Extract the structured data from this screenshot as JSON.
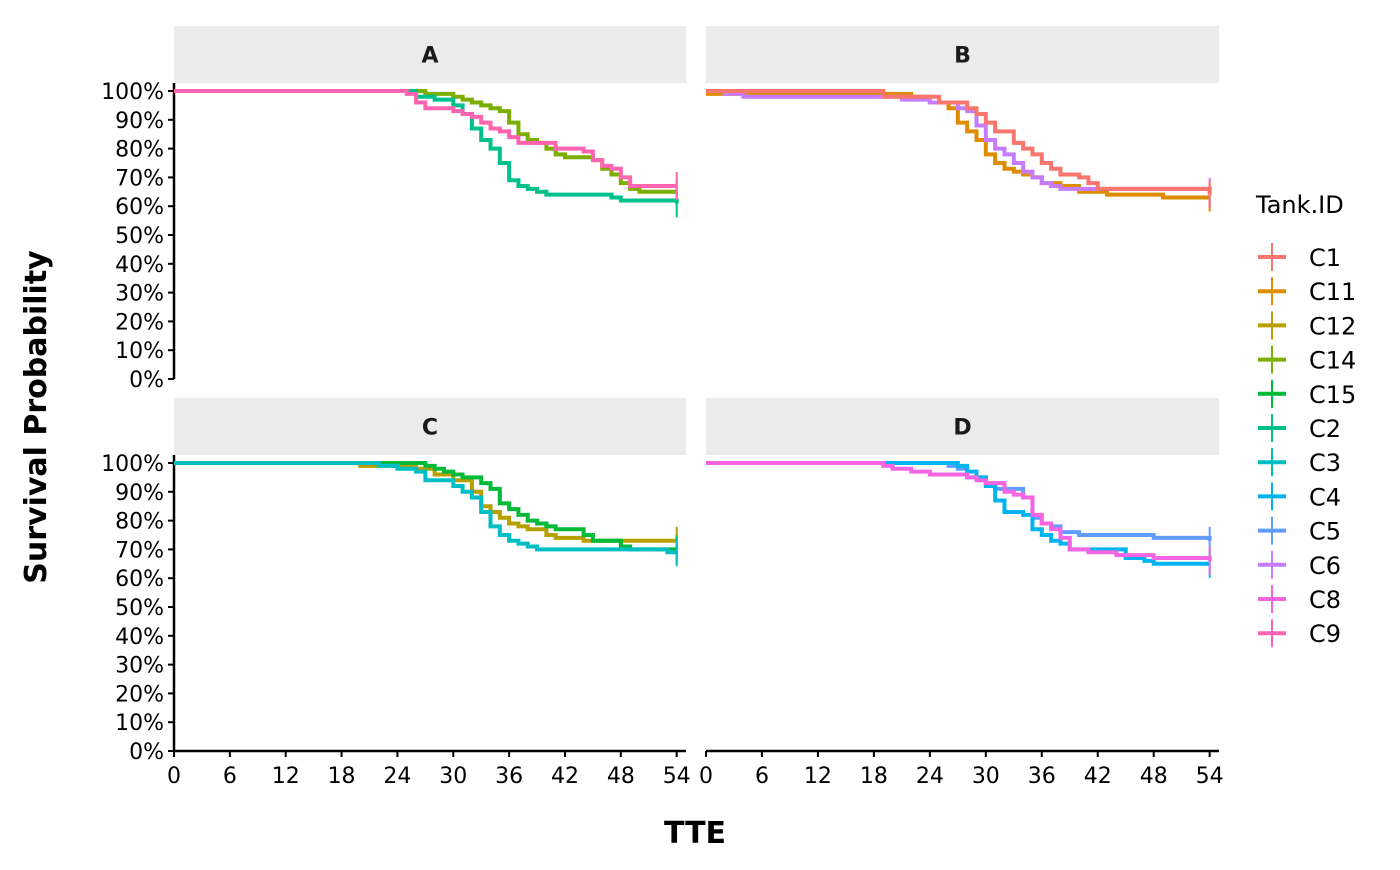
{
  "chart_data": {
    "type": "line",
    "xlabel": "TTE",
    "ylabel": "Survival Probability",
    "xlim": [
      0,
      55
    ],
    "ylim": [
      0,
      1
    ],
    "x_ticks": [
      0,
      6,
      12,
      18,
      24,
      30,
      36,
      42,
      48,
      54
    ],
    "x_tick_labels": [
      "0",
      "6",
      "12",
      "18",
      "24",
      "30",
      "36",
      "42",
      "48",
      "54"
    ],
    "y_ticks": [
      0,
      0.1,
      0.2,
      0.3,
      0.4,
      0.5,
      0.6,
      0.7,
      0.8,
      0.9,
      1.0
    ],
    "y_tick_labels": [
      "0%",
      "10%",
      "20%",
      "30%",
      "40%",
      "50%",
      "60%",
      "70%",
      "80%",
      "90%",
      "100%"
    ],
    "grid": false,
    "legend": {
      "title": "Tank.ID",
      "placement": "right",
      "entries": [
        {
          "name": "C1",
          "color": "#F8766D"
        },
        {
          "name": "C11",
          "color": "#DE8C00"
        },
        {
          "name": "C12",
          "color": "#B79F00"
        },
        {
          "name": "C14",
          "color": "#7CAE00"
        },
        {
          "name": "C15",
          "color": "#00BA38"
        },
        {
          "name": "C2",
          "color": "#00C08B"
        },
        {
          "name": "C3",
          "color": "#00BFC4"
        },
        {
          "name": "C4",
          "color": "#00B4F0"
        },
        {
          "name": "C5",
          "color": "#619CFF"
        },
        {
          "name": "C6",
          "color": "#C77CFF"
        },
        {
          "name": "C8",
          "color": "#F564E3"
        },
        {
          "name": "C9",
          "color": "#FF64B0"
        }
      ]
    },
    "panels": [
      {
        "label": "A",
        "series": [
          {
            "name": "C14",
            "color": "#7CAE00",
            "x": [
              0,
              27,
              28,
              30,
              31,
              32,
              33,
              34,
              35,
              36,
              37,
              38,
              39,
              40,
              41,
              42,
              45,
              46,
              47,
              48,
              49,
              50,
              54
            ],
            "y": [
              1.0,
              0.99,
              0.99,
              0.98,
              0.97,
              0.96,
              0.95,
              0.94,
              0.93,
              0.89,
              0.85,
              0.83,
              0.82,
              0.8,
              0.78,
              0.77,
              0.76,
              0.73,
              0.71,
              0.68,
              0.66,
              0.65,
              0.65
            ]
          },
          {
            "name": "C2",
            "color": "#00C08B",
            "x": [
              0,
              24,
              26,
              28,
              30,
              31,
              32,
              33,
              34,
              35,
              36,
              37,
              38,
              39,
              40,
              41,
              47,
              48,
              54
            ],
            "y": [
              1.0,
              1.0,
              0.98,
              0.97,
              0.95,
              0.92,
              0.87,
              0.83,
              0.8,
              0.75,
              0.69,
              0.67,
              0.66,
              0.65,
              0.64,
              0.64,
              0.63,
              0.62,
              0.61
            ]
          },
          {
            "name": "C9",
            "color": "#FF64B0",
            "x": [
              0,
              25,
              26,
              27,
              30,
              31,
              32,
              33,
              34,
              35,
              36,
              37,
              38,
              41,
              44,
              45,
              46,
              47,
              48,
              49,
              54
            ],
            "y": [
              1.0,
              0.99,
              0.96,
              0.94,
              0.93,
              0.92,
              0.91,
              0.89,
              0.87,
              0.86,
              0.84,
              0.82,
              0.82,
              0.8,
              0.79,
              0.76,
              0.74,
              0.73,
              0.7,
              0.67,
              0.67
            ]
          }
        ]
      },
      {
        "label": "B",
        "series": [
          {
            "name": "C11",
            "color": "#DE8C00",
            "x": [
              0,
              20,
              22,
              24,
              26,
              27,
              28,
              29,
              30,
              31,
              32,
              33,
              34,
              35,
              36,
              38,
              40,
              43,
              49,
              54
            ],
            "y": [
              0.99,
              0.99,
              0.98,
              0.96,
              0.94,
              0.89,
              0.86,
              0.83,
              0.78,
              0.75,
              0.73,
              0.72,
              0.71,
              0.7,
              0.68,
              0.67,
              0.65,
              0.64,
              0.63,
              0.63
            ]
          },
          {
            "name": "C6",
            "color": "#C77CFF",
            "x": [
              0,
              2,
              4,
              19,
              21,
              24,
              27,
              28,
              29,
              30,
              31,
              32,
              33,
              34,
              35,
              36,
              37,
              38,
              40,
              54
            ],
            "y": [
              1.0,
              0.99,
              0.98,
              0.98,
              0.97,
              0.96,
              0.94,
              0.93,
              0.88,
              0.83,
              0.8,
              0.78,
              0.75,
              0.72,
              0.7,
              0.68,
              0.67,
              0.66,
              0.66,
              0.65
            ]
          },
          {
            "name": "C1",
            "color": "#F8766D",
            "x": [
              0,
              19,
              25,
              28,
              29,
              30,
              31,
              33,
              34,
              35,
              36,
              37,
              38,
              40,
              41,
              42,
              54
            ],
            "y": [
              1.0,
              0.98,
              0.96,
              0.94,
              0.92,
              0.89,
              0.86,
              0.82,
              0.8,
              0.78,
              0.75,
              0.73,
              0.71,
              0.7,
              0.68,
              0.66,
              0.64
            ]
          }
        ]
      },
      {
        "label": "C",
        "series": [
          {
            "name": "C12",
            "color": "#B79F00",
            "x": [
              0,
              20,
              22,
              26,
              28,
              30,
              32,
              33,
              34,
              35,
              36,
              37,
              38,
              40,
              41,
              44,
              54
            ],
            "y": [
              1.0,
              0.99,
              0.99,
              0.98,
              0.96,
              0.94,
              0.9,
              0.85,
              0.83,
              0.81,
              0.79,
              0.78,
              0.77,
              0.75,
              0.74,
              0.73,
              0.73
            ]
          },
          {
            "name": "C15",
            "color": "#00BA38",
            "x": [
              0,
              24,
              27,
              28,
              29,
              30,
              31,
              33,
              34,
              35,
              36,
              37,
              38,
              39,
              40,
              41,
              44,
              45,
              48,
              49,
              54
            ],
            "y": [
              1.0,
              1.0,
              0.99,
              0.98,
              0.97,
              0.96,
              0.95,
              0.93,
              0.91,
              0.86,
              0.84,
              0.82,
              0.8,
              0.79,
              0.78,
              0.77,
              0.75,
              0.73,
              0.71,
              0.7,
              0.7
            ]
          },
          {
            "name": "C3",
            "color": "#00BFC4",
            "x": [
              0,
              22,
              24,
              26,
              27,
              30,
              31,
              32,
              33,
              34,
              35,
              36,
              37,
              38,
              39,
              40,
              53,
              54
            ],
            "y": [
              1.0,
              0.99,
              0.98,
              0.97,
              0.94,
              0.92,
              0.9,
              0.88,
              0.83,
              0.78,
              0.75,
              0.73,
              0.72,
              0.71,
              0.7,
              0.7,
              0.69,
              0.69
            ]
          }
        ]
      },
      {
        "label": "D",
        "series": [
          {
            "name": "C5",
            "color": "#619CFF",
            "x": [
              0,
              26,
              27,
              28,
              30,
              31,
              34,
              35,
              36,
              37,
              38,
              40,
              45,
              48,
              54
            ],
            "y": [
              1.0,
              0.99,
              0.98,
              0.95,
              0.93,
              0.91,
              0.88,
              0.81,
              0.79,
              0.78,
              0.76,
              0.75,
              0.75,
              0.74,
              0.73
            ]
          },
          {
            "name": "C4",
            "color": "#00B4F0",
            "x": [
              0,
              24,
              27,
              28,
              29,
              30,
              31,
              32,
              34,
              35,
              36,
              37,
              38,
              39,
              45,
              47,
              48,
              54
            ],
            "y": [
              1.0,
              1.0,
              0.99,
              0.97,
              0.95,
              0.92,
              0.87,
              0.83,
              0.82,
              0.77,
              0.75,
              0.73,
              0.72,
              0.7,
              0.67,
              0.66,
              0.65,
              0.65
            ]
          },
          {
            "name": "C8",
            "color": "#F564E3",
            "x": [
              0,
              19,
              20,
              22,
              24,
              28,
              29,
              30,
              32,
              33,
              34,
              35,
              36,
              37,
              38,
              39,
              41,
              44,
              48,
              54
            ],
            "y": [
              1.0,
              0.99,
              0.98,
              0.97,
              0.96,
              0.95,
              0.94,
              0.93,
              0.9,
              0.89,
              0.88,
              0.82,
              0.79,
              0.77,
              0.74,
              0.7,
              0.69,
              0.68,
              0.67,
              0.66
            ]
          }
        ]
      }
    ]
  }
}
